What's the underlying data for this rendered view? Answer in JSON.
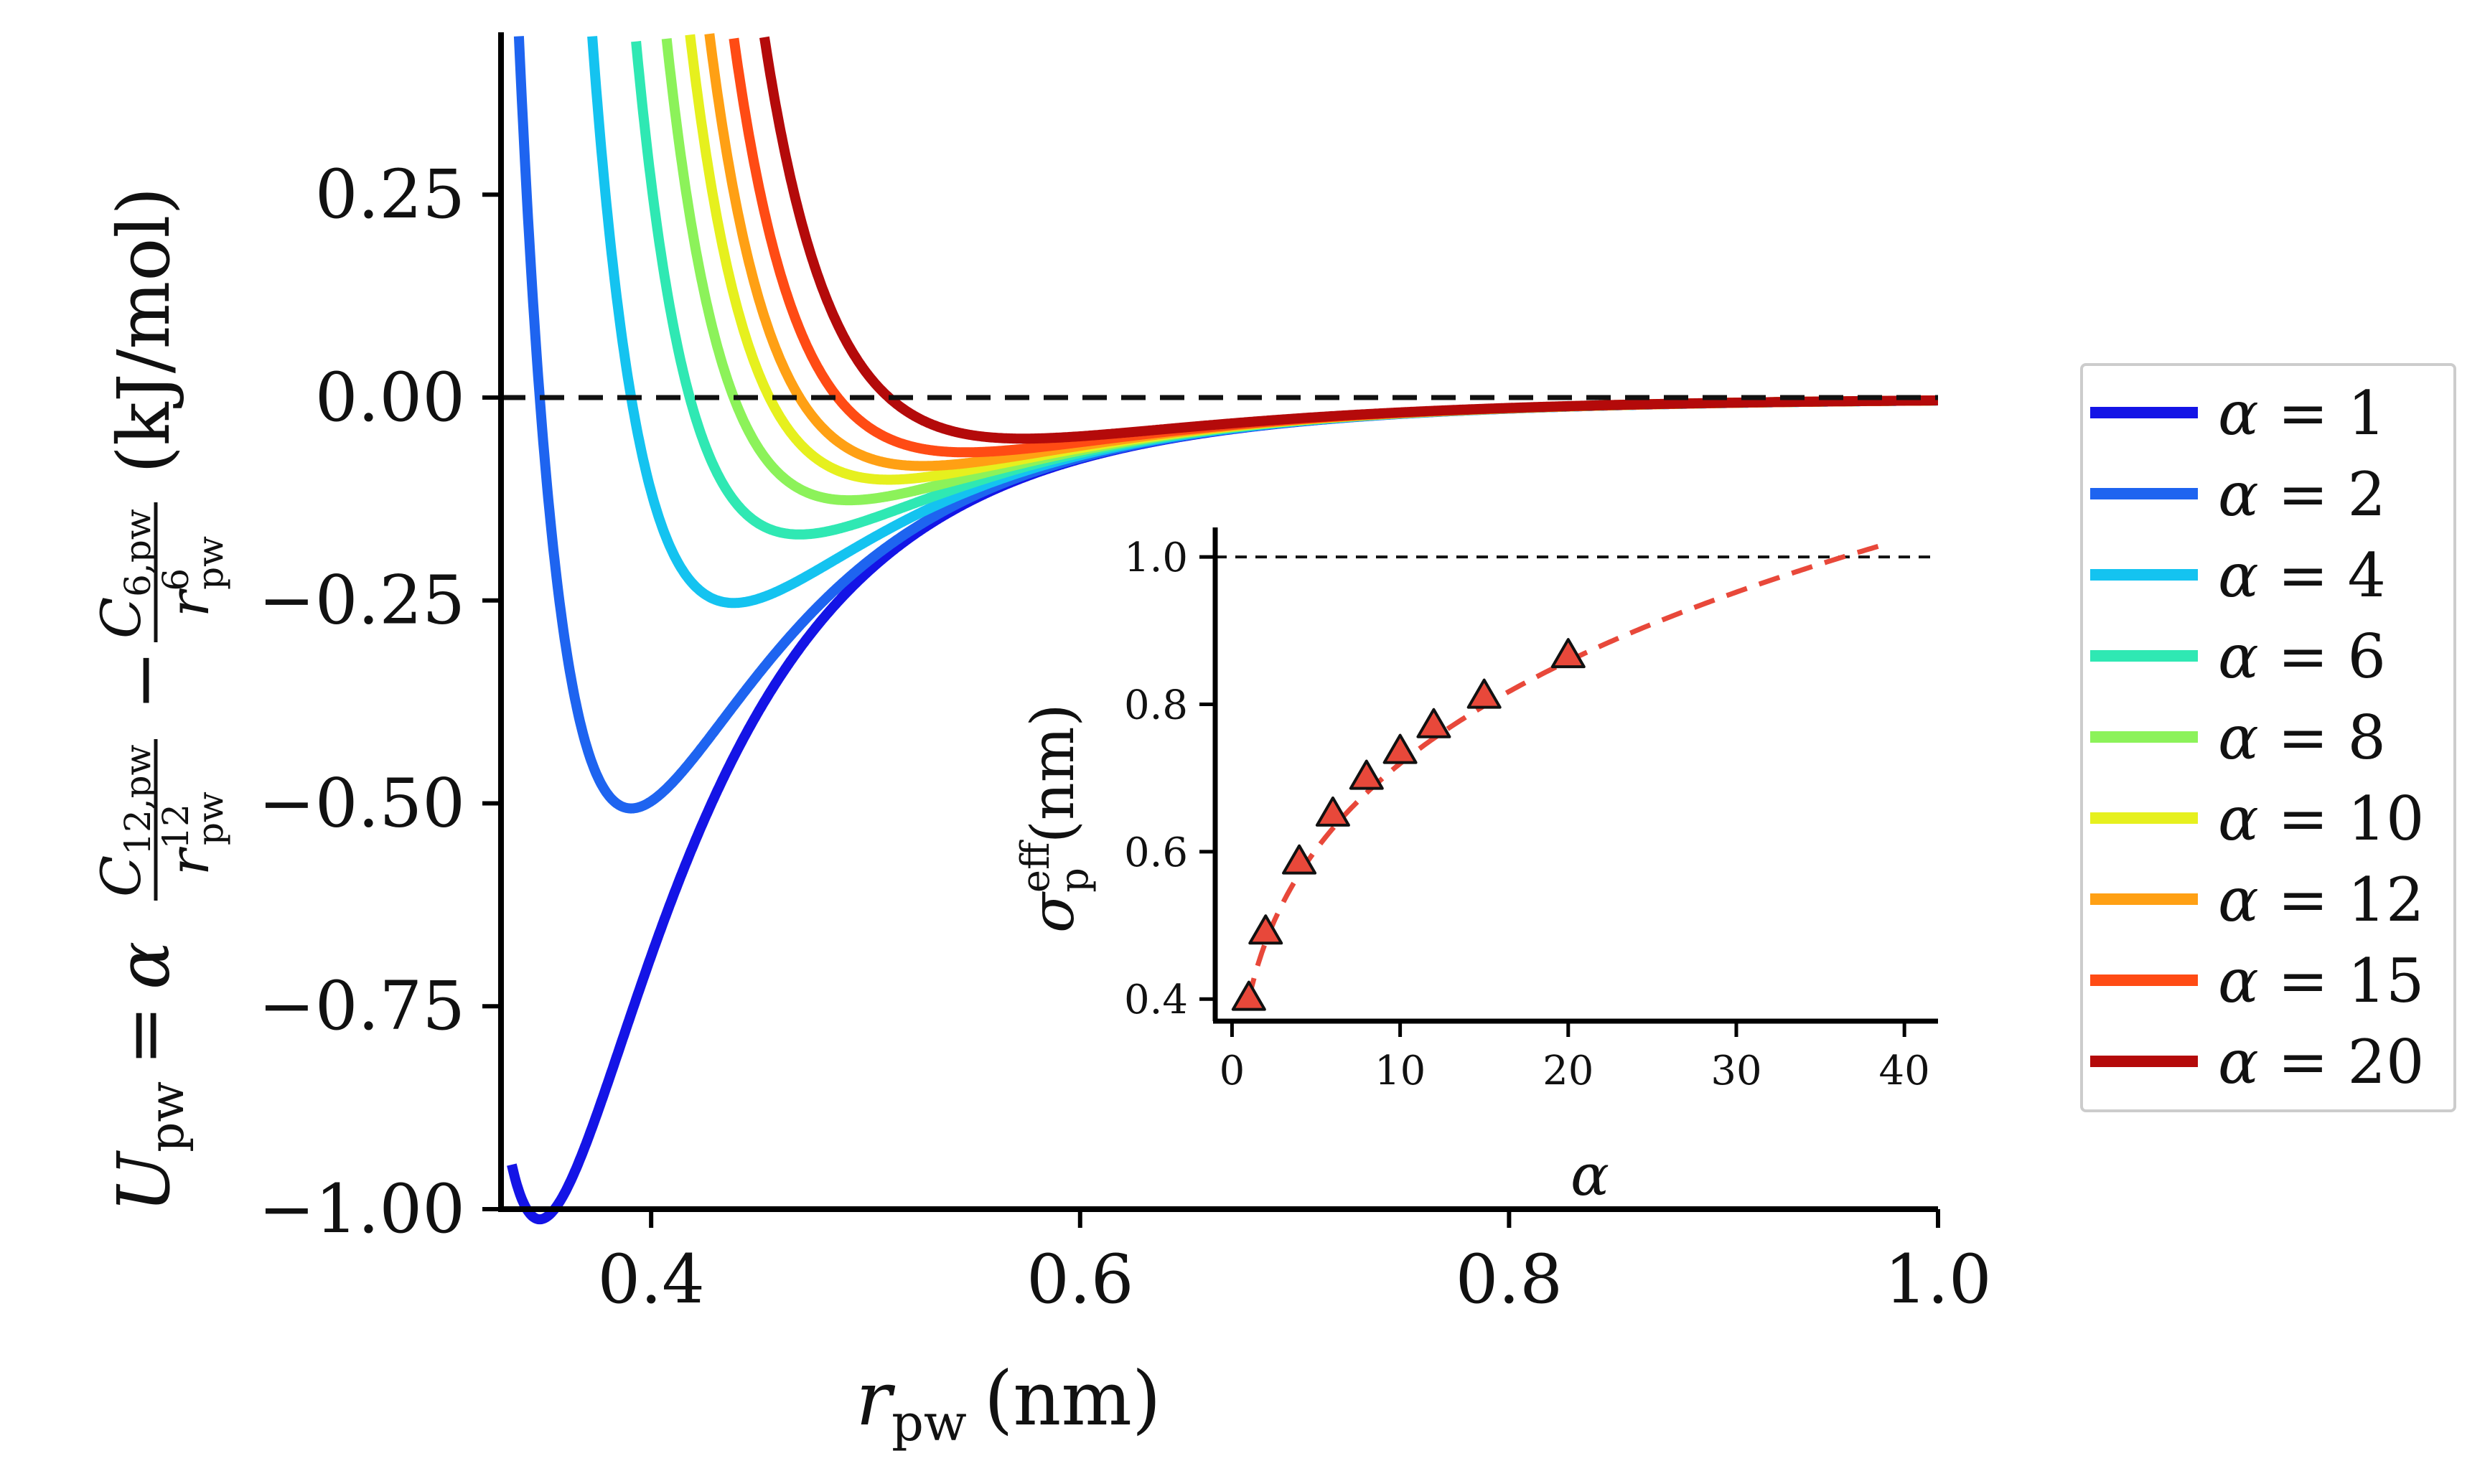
{
  "chart_data": [
    {
      "type": "line",
      "role": "main",
      "xlabel": {
        "symbol": "r",
        "sub": "pw",
        "unit": "(nm)"
      },
      "ylabel": {
        "lhs": "U",
        "lhs_sub": "pw",
        "eq": "=",
        "alpha": "α",
        "num1": "C",
        "num1_sub": "12,pw",
        "den1": "r",
        "den1_sub": "pw",
        "den1_sup": "12",
        "minus": "−",
        "num2": "C",
        "num2_sub": "6,pw",
        "den2": "r",
        "den2_sub": "pw",
        "den2_sup": "6",
        "unit": "(kJ/mol)"
      },
      "xlim": [
        0.33,
        1.0
      ],
      "ylim": [
        -1.0,
        0.45
      ],
      "xticks": [
        0.4,
        0.6,
        0.8,
        1.0
      ],
      "xtick_labels": [
        "0.4",
        "0.6",
        "0.8",
        "1.0"
      ],
      "yticks": [
        0.25,
        0.0,
        -0.25,
        -0.5,
        -0.75,
        -1.0
      ],
      "ytick_labels": [
        "0.25",
        "0.00",
        "−0.25",
        "−0.50",
        "−0.75",
        "−1.00"
      ],
      "reference_line": {
        "y": 0.0,
        "style": "dashed",
        "color": "#111111"
      },
      "model": {
        "C6": 0.0036,
        "C12": 3.2e-06
      },
      "series": [
        {
          "name": "α = 1",
          "alpha": 1,
          "color": "#1414e6"
        },
        {
          "name": "α = 2",
          "alpha": 2,
          "color": "#1e64f0"
        },
        {
          "name": "α = 4",
          "alpha": 4,
          "color": "#14c3f0"
        },
        {
          "name": "α = 6",
          "alpha": 6,
          "color": "#2fe8b3"
        },
        {
          "name": "α = 8",
          "alpha": 8,
          "color": "#8cf25a"
        },
        {
          "name": "α = 10",
          "alpha": 10,
          "color": "#e6f01e"
        },
        {
          "name": "α = 12",
          "alpha": 12,
          "color": "#ffa014"
        },
        {
          "name": "α = 15",
          "alpha": 15,
          "color": "#ff4b14"
        },
        {
          "name": "α = 20",
          "alpha": 20,
          "color": "#b40a0a"
        }
      ],
      "legend_position": "outside-right"
    },
    {
      "type": "scatter",
      "role": "inset",
      "xlabel": "α",
      "ylabel": {
        "symbol": "σ",
        "sub": "p",
        "sup": "eff",
        "unit": "(nm)"
      },
      "xlim": [
        -1,
        42
      ],
      "ylim": [
        0.37,
        1.04
      ],
      "xticks": [
        0,
        10,
        20,
        30,
        40
      ],
      "xtick_labels": [
        "0",
        "10",
        "20",
        "30",
        "40"
      ],
      "yticks": [
        0.4,
        0.6,
        0.8,
        1.0
      ],
      "ytick_labels": [
        "0.4",
        "0.6",
        "0.8",
        "1.0"
      ],
      "reference_line": {
        "y": 1.0,
        "style": "dashed",
        "color": "#111111"
      },
      "points": {
        "x": [
          1,
          2,
          4,
          6,
          8,
          10,
          12,
          15,
          20
        ],
        "y": [
          0.4,
          0.49,
          0.585,
          0.65,
          0.7,
          0.735,
          0.77,
          0.81,
          0.865
        ],
        "marker": "triangle",
        "color": "#e8483a",
        "edge": "#111111"
      },
      "fit": {
        "style": "dashed",
        "color": "#e8483a",
        "x_range": [
          1,
          39
        ],
        "exponent": 0.255,
        "coefficient": 0.4
      }
    }
  ]
}
